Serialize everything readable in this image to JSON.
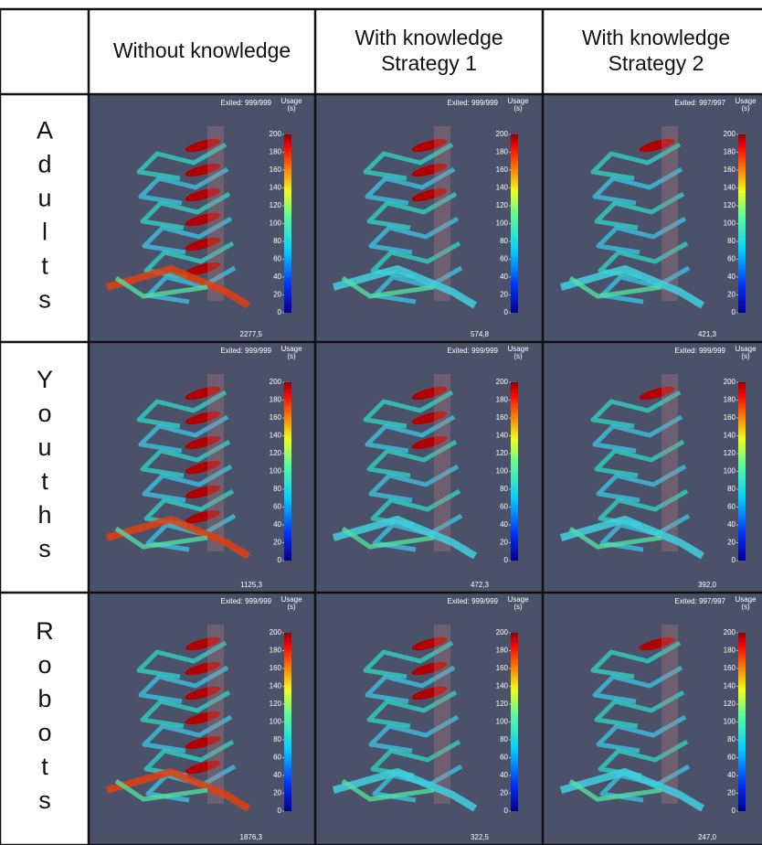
{
  "columns": [
    {
      "lines": [
        "Without knowledge"
      ]
    },
    {
      "lines": [
        "With knowledge",
        "Strategy 1"
      ]
    },
    {
      "lines": [
        "With knowledge",
        "Strategy 2"
      ]
    }
  ],
  "rows": [
    {
      "label": "Adults",
      "cells": [
        {
          "exited": "Exited: 999/999",
          "total": "2277,5"
        },
        {
          "exited": "Exited: 999/999",
          "total": "574,8"
        },
        {
          "exited": "Exited: 997/997",
          "total": "421,3"
        }
      ]
    },
    {
      "label": "Youths",
      "cells": [
        {
          "exited": "Exited: 999/999",
          "total": "1125,3"
        },
        {
          "exited": "Exited: 999/999",
          "total": "472,3"
        },
        {
          "exited": "Exited: 999/999",
          "total": "392,0"
        }
      ]
    },
    {
      "label": "Robots",
      "cells": [
        {
          "exited": "Exited: 999/999",
          "total": "1876,3"
        },
        {
          "exited": "Exited: 999/999",
          "total": "322,5"
        },
        {
          "exited": "Exited: 997/997",
          "total": "247,0"
        }
      ]
    }
  ],
  "colorbar": {
    "title": [
      "Usage",
      "(s)"
    ],
    "range": [
      0,
      200
    ],
    "ticks": [
      0,
      20,
      40,
      60,
      80,
      100,
      120,
      140,
      160,
      180,
      200
    ]
  }
}
